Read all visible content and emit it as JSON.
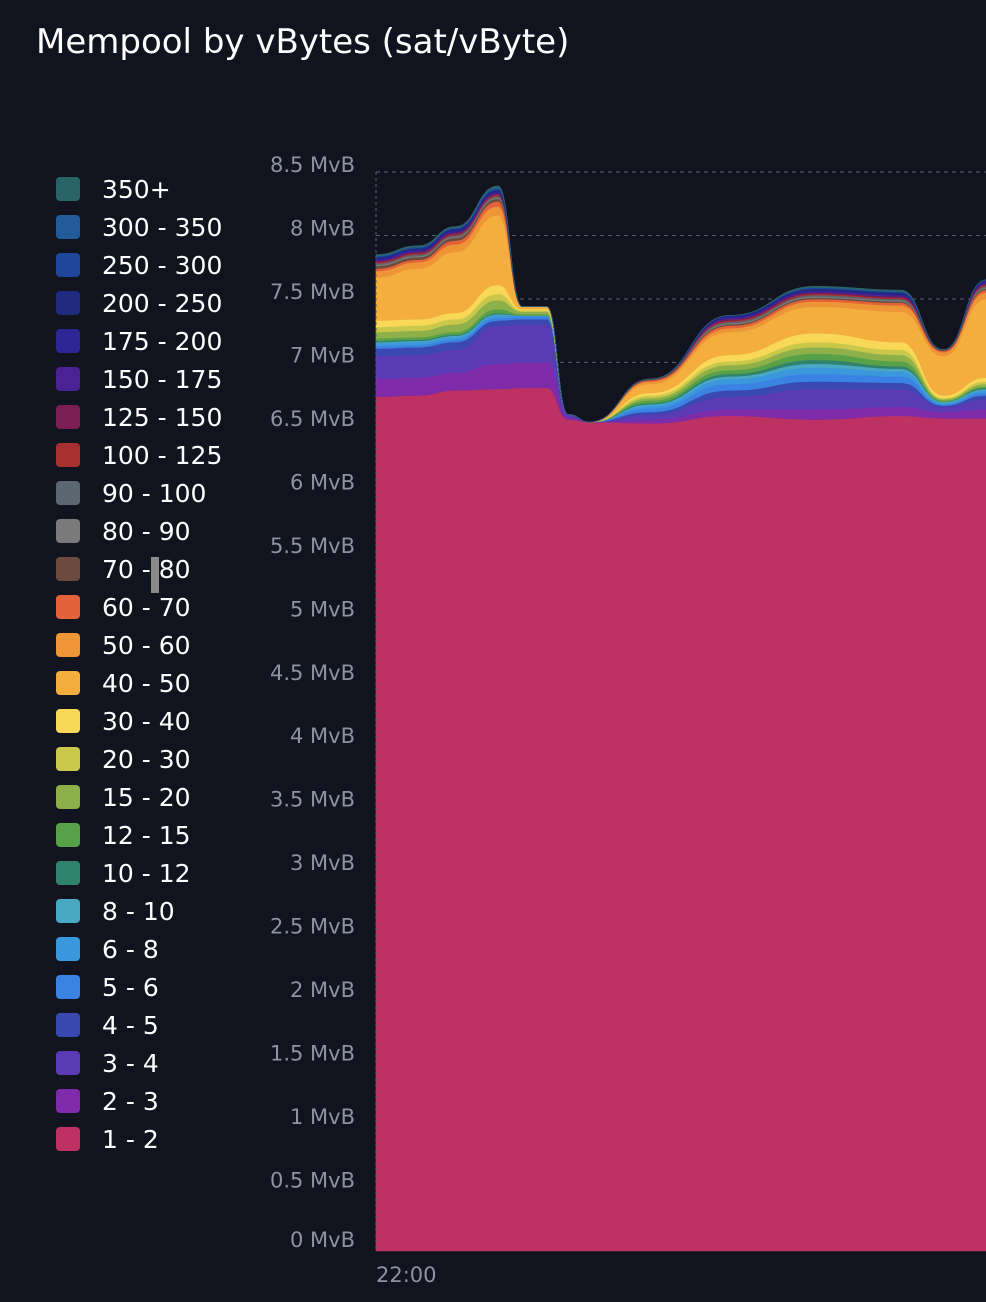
{
  "title": "Mempool by vBytes (sat/vByte)",
  "chart_data": {
    "type": "area",
    "stacked": true,
    "title": "Mempool by vBytes (sat/vByte)",
    "ylabel": "",
    "xlabel": "",
    "y_unit": "MvB",
    "ylim": [
      0,
      8.5
    ],
    "y_ticks": [
      "0 MvB",
      "0.5 MvB",
      "1 MvB",
      "1.5 MvB",
      "2 MvB",
      "2.5 MvB",
      "3 MvB",
      "3.5 MvB",
      "4 MvB",
      "4.5 MvB",
      "5 MvB",
      "5.5 MvB",
      "6 MvB",
      "6.5 MvB",
      "7 MvB",
      "7.5 MvB",
      "8 MvB",
      "8.5 MvB"
    ],
    "x_ticks": [
      "22:00"
    ],
    "grid": "dashed horizontal",
    "legend_position": "left",
    "legend": [
      "350+",
      "300 - 350",
      "250 - 300",
      "200 - 250",
      "175 - 200",
      "150 - 175",
      "125 - 150",
      "100 - 125",
      "90 - 100",
      "80 - 90",
      "70 - 80",
      "60 - 70",
      "50 - 60",
      "40 - 50",
      "30 - 40",
      "20 - 30",
      "15 - 20",
      "12 - 15",
      "10 - 12",
      "8 - 10",
      "6 - 8",
      "5 - 6",
      "4 - 5",
      "3 - 4",
      "2 - 3",
      "1 - 2"
    ],
    "colors": [
      "#2b6468",
      "#225a9a",
      "#1e479c",
      "#1f2b7c",
      "#2e2596",
      "#4a2293",
      "#7a1e55",
      "#a8302f",
      "#5a6670",
      "#7a7a7a",
      "#6a4b3e",
      "#e3623a",
      "#ee9537",
      "#f3ae3e",
      "#f8d856",
      "#c9c84b",
      "#8eb04a",
      "#58a148",
      "#2f826c",
      "#4aa9c2",
      "#3c98dd",
      "#3b83e2",
      "#3a48b1",
      "#5b3ab5",
      "#7f2aa8",
      "#bd3262"
    ],
    "x": [
      0,
      0.07,
      0.13,
      0.2,
      0.24,
      0.28,
      0.315,
      0.35,
      0.45,
      0.58,
      0.72,
      0.86,
      0.93,
      1.0
    ],
    "series": [
      {
        "name": "1 - 2",
        "values": [
          6.73,
          6.74,
          6.78,
          6.79,
          6.8,
          6.8,
          6.55,
          6.53,
          6.52,
          6.58,
          6.55,
          6.58,
          6.56,
          6.56
        ]
      },
      {
        "name": "2 - 3",
        "values": [
          0.14,
          0.14,
          0.14,
          0.2,
          0.2,
          0.2,
          0.02,
          0.0,
          0.03,
          0.05,
          0.08,
          0.07,
          0.05,
          0.07
        ]
      },
      {
        "name": "3 - 4",
        "values": [
          0.18,
          0.18,
          0.18,
          0.3,
          0.3,
          0.3,
          0.02,
          0.0,
          0.04,
          0.1,
          0.16,
          0.14,
          0.04,
          0.08
        ]
      },
      {
        "name": "4 - 5",
        "values": [
          0.06,
          0.06,
          0.06,
          0.04,
          0.04,
          0.04,
          0.0,
          0.0,
          0.02,
          0.05,
          0.06,
          0.05,
          0.01,
          0.03
        ]
      },
      {
        "name": "5 - 6",
        "values": [
          0.02,
          0.02,
          0.02,
          0.02,
          0.02,
          0.02,
          0.0,
          0.0,
          0.03,
          0.05,
          0.06,
          0.05,
          0.01,
          0.02
        ]
      },
      {
        "name": "6 - 8",
        "values": [
          0.02,
          0.02,
          0.02,
          0.02,
          0.01,
          0.01,
          0.0,
          0.0,
          0.02,
          0.04,
          0.05,
          0.04,
          0.01,
          0.02
        ]
      },
      {
        "name": "8 - 10",
        "values": [
          0.01,
          0.01,
          0.01,
          0.01,
          0.0,
          0.0,
          0.0,
          0.0,
          0.01,
          0.02,
          0.03,
          0.02,
          0.01,
          0.01
        ]
      },
      {
        "name": "10 - 12",
        "values": [
          0.01,
          0.01,
          0.01,
          0.01,
          0.0,
          0.0,
          0.0,
          0.0,
          0.01,
          0.02,
          0.03,
          0.02,
          0.0,
          0.01
        ]
      },
      {
        "name": "12 - 15",
        "values": [
          0.02,
          0.02,
          0.02,
          0.03,
          0.01,
          0.01,
          0.0,
          0.0,
          0.02,
          0.03,
          0.05,
          0.04,
          0.01,
          0.01
        ]
      },
      {
        "name": "15 - 20",
        "values": [
          0.05,
          0.05,
          0.06,
          0.07,
          0.02,
          0.02,
          0.0,
          0.0,
          0.02,
          0.04,
          0.05,
          0.05,
          0.01,
          0.02
        ]
      },
      {
        "name": "20 - 30",
        "values": [
          0.04,
          0.04,
          0.04,
          0.05,
          0.01,
          0.01,
          0.0,
          0.0,
          0.02,
          0.03,
          0.04,
          0.04,
          0.01,
          0.02
        ]
      },
      {
        "name": "30 - 40",
        "values": [
          0.05,
          0.05,
          0.05,
          0.07,
          0.01,
          0.01,
          0.0,
          0.0,
          0.02,
          0.05,
          0.07,
          0.06,
          0.02,
          0.03
        ]
      },
      {
        "name": "40 - 50",
        "values": [
          0.34,
          0.4,
          0.48,
          0.55,
          0.02,
          0.02,
          0.0,
          0.0,
          0.07,
          0.18,
          0.21,
          0.24,
          0.31,
          0.62
        ]
      },
      {
        "name": "50 - 60",
        "values": [
          0.05,
          0.05,
          0.06,
          0.07,
          0.0,
          0.0,
          0.0,
          0.0,
          0.02,
          0.03,
          0.04,
          0.05,
          0.03,
          0.05
        ]
      },
      {
        "name": "60 - 70",
        "values": [
          0.02,
          0.02,
          0.03,
          0.04,
          0.0,
          0.0,
          0.0,
          0.0,
          0.01,
          0.02,
          0.02,
          0.02,
          0.01,
          0.02
        ]
      },
      {
        "name": "70 - 80",
        "values": [
          0.02,
          0.02,
          0.02,
          0.02,
          0.0,
          0.0,
          0.0,
          0.0,
          0.01,
          0.01,
          0.01,
          0.01,
          0.01,
          0.01
        ]
      },
      {
        "name": "80 - 90",
        "values": [
          0.01,
          0.01,
          0.01,
          0.01,
          0.0,
          0.0,
          0.0,
          0.0,
          0.0,
          0.01,
          0.01,
          0.01,
          0.0,
          0.01
        ]
      },
      {
        "name": "90 - 100",
        "values": [
          0.01,
          0.01,
          0.01,
          0.01,
          0.0,
          0.0,
          0.0,
          0.0,
          0.0,
          0.01,
          0.01,
          0.01,
          0.0,
          0.01
        ]
      },
      {
        "name": "100 - 125",
        "values": [
          0.01,
          0.01,
          0.01,
          0.01,
          0.0,
          0.0,
          0.0,
          0.0,
          0.0,
          0.01,
          0.01,
          0.01,
          0.0,
          0.01
        ]
      },
      {
        "name": "125 - 150",
        "values": [
          0.01,
          0.01,
          0.01,
          0.01,
          0.0,
          0.0,
          0.0,
          0.0,
          0.0,
          0.01,
          0.01,
          0.01,
          0.0,
          0.01
        ]
      },
      {
        "name": "150 - 175",
        "values": [
          0.01,
          0.01,
          0.01,
          0.01,
          0.0,
          0.0,
          0.0,
          0.0,
          0.0,
          0.01,
          0.01,
          0.01,
          0.0,
          0.01
        ]
      },
      {
        "name": "175 - 200",
        "values": [
          0.01,
          0.01,
          0.01,
          0.01,
          0.0,
          0.0,
          0.0,
          0.0,
          0.0,
          0.01,
          0.01,
          0.01,
          0.0,
          0.01
        ]
      },
      {
        "name": "200 - 250",
        "values": [
          0.01,
          0.01,
          0.01,
          0.01,
          0.0,
          0.0,
          0.0,
          0.0,
          0.0,
          0.01,
          0.01,
          0.01,
          0.0,
          0.01
        ]
      },
      {
        "name": "250 - 300",
        "values": [
          0.01,
          0.01,
          0.01,
          0.01,
          0.0,
          0.0,
          0.0,
          0.0,
          0.0,
          0.0,
          0.01,
          0.01,
          0.0,
          0.0
        ]
      },
      {
        "name": "300 - 350",
        "values": [
          0.0,
          0.0,
          0.0,
          0.01,
          0.0,
          0.0,
          0.0,
          0.0,
          0.0,
          0.0,
          0.0,
          0.0,
          0.0,
          0.0
        ]
      },
      {
        "name": "350+",
        "values": [
          0.01,
          0.01,
          0.01,
          0.01,
          0.0,
          0.0,
          0.0,
          0.0,
          0.0,
          0.0,
          0.01,
          0.01,
          0.0,
          0.0
        ]
      }
    ]
  }
}
